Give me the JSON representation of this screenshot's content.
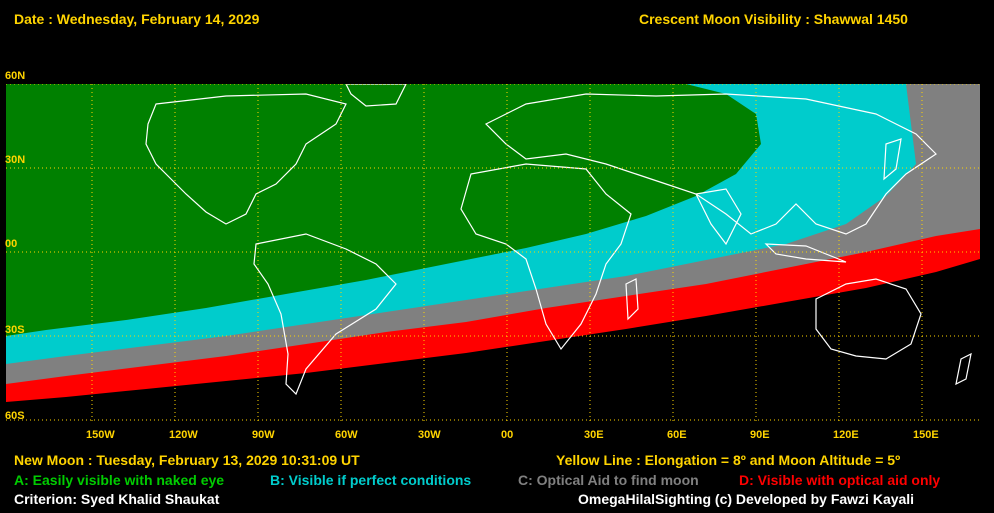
{
  "header": {
    "date_text": "Date : Wednesday, February 14, 2029",
    "title_text": "Crescent Moon Visibility : Shawwal  1450"
  },
  "map": {
    "lat_labels": [
      "60N",
      "30N",
      "00",
      "30S",
      "60S"
    ],
    "lon_labels": [
      "150W",
      "120W",
      "90W",
      "60W",
      "30W",
      "00",
      "30E",
      "60E",
      "90E",
      "120E",
      "150E"
    ],
    "zone_colors": {
      "A": "#008000",
      "B": "#00cccc",
      "C": "#808080",
      "D": "#ff0000",
      "none": "#000000",
      "grid": "#ffd400",
      "coast": "#ffffff"
    }
  },
  "footer": {
    "new_moon_text": "New Moon : Tuesday, February 13, 2029  10:31:09  UT",
    "yellow_line_text": "Yellow Line : Elongation = 8º  and Moon Altitude = 5º",
    "legend_a": "A: Easily visible with naked eye",
    "legend_b": "B: Visible if perfect conditions",
    "legend_c": "C: Optical Aid to find moon",
    "legend_d": "D: Visible with optical aid only",
    "criterion_text": "Criterion: Syed Khalid Shaukat",
    "credit_text": "OmegaHilalSighting  (c)  Developed by Fawzi Kayali"
  }
}
